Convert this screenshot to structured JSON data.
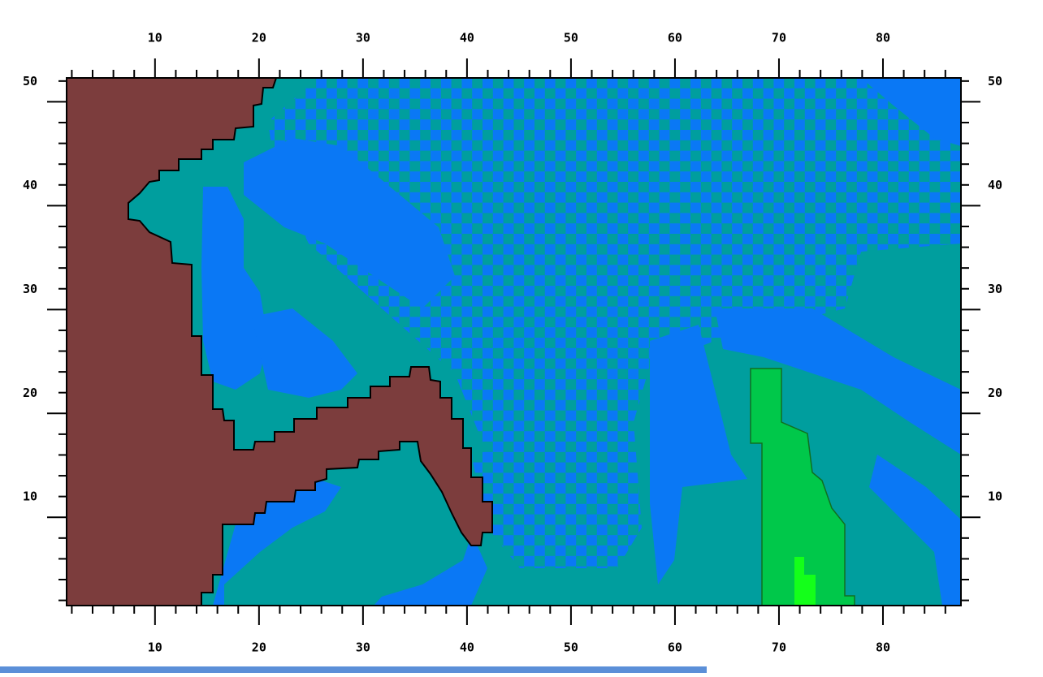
{
  "chart_data": {
    "type": "grid",
    "xlim": [
      1.5,
      87.5
    ],
    "ylim": [
      1.5,
      52.3
    ],
    "xticks": [
      10,
      20,
      30,
      40,
      50,
      60,
      70,
      80
    ],
    "yticks": [
      10,
      20,
      30,
      40,
      50
    ],
    "minor_xticks": [
      2,
      4,
      6,
      8,
      12,
      14,
      16,
      18,
      22,
      24,
      26,
      28,
      32,
      34,
      36,
      38,
      42,
      44,
      46,
      48,
      52,
      54,
      56,
      58,
      62,
      64,
      66,
      68,
      72,
      74,
      76,
      78,
      82,
      84,
      86
    ],
    "minor_yticks": [
      2,
      4,
      6,
      8,
      12,
      14,
      16,
      18,
      22,
      24,
      26,
      28,
      32,
      34,
      36,
      38,
      42,
      44,
      46,
      48,
      52
    ]
  }
}
